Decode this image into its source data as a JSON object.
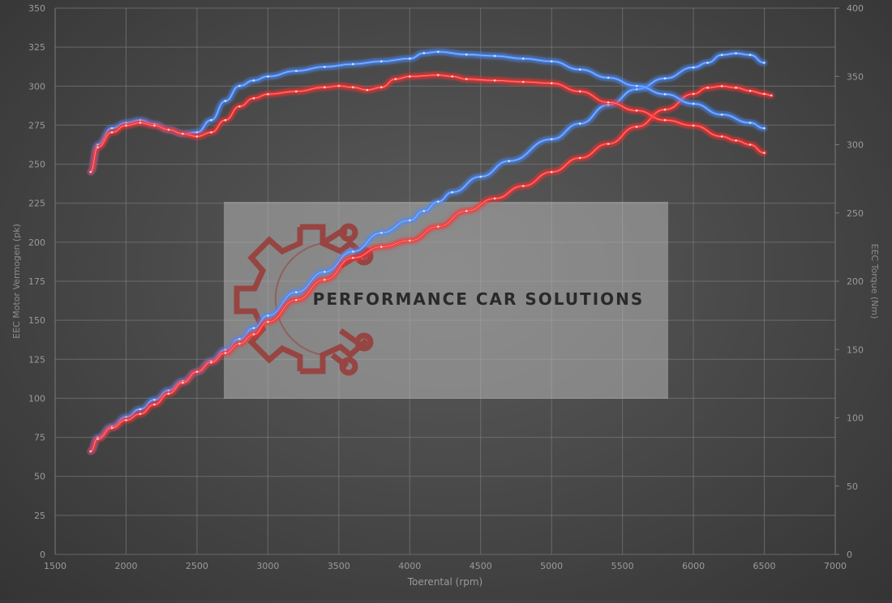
{
  "watermark": {
    "text": "PERFORMANCE CAR SOLUTIONS"
  },
  "colors": {
    "red": "#ff3030",
    "blue": "#4a8cff",
    "grid": "#7a7a7a",
    "text": "#9a9a9a"
  },
  "chart_data": {
    "type": "line",
    "title": "",
    "xlabel": "Toerental (rpm)",
    "ylabel": "EEC Motor Vermogen (pk)",
    "y2label": "EEC Torque (Nm)",
    "xlim": [
      1500,
      7000
    ],
    "ylim": [
      0,
      350
    ],
    "y2lim": [
      0,
      400
    ],
    "x_ticks": [
      "1500",
      "2000",
      "2500",
      "3000",
      "3500",
      "4000",
      "4500",
      "5000",
      "5500",
      "6000",
      "6500",
      "7000"
    ],
    "y_ticks": [
      "0",
      "25",
      "50",
      "75",
      "100",
      "125",
      "150",
      "175",
      "200",
      "225",
      "250",
      "275",
      "300",
      "325",
      "350"
    ],
    "y2_ticks": [
      "0",
      "50",
      "100",
      "150",
      "200",
      "250",
      "300",
      "350",
      "400"
    ],
    "grid": true,
    "legend": "none",
    "series": [
      {
        "axis": "left",
        "color": "#4a8cff",
        "x": [
          1750,
          1800,
          1900,
          2000,
          2100,
          2200,
          2300,
          2400,
          2500,
          2600,
          2700,
          2800,
          2900,
          3000,
          3200,
          3400,
          3600,
          3800,
          4000,
          4100,
          4200,
          4300,
          4500,
          4700,
          5000,
          5200,
          5400,
          5600,
          5800,
          6000,
          6100,
          6200,
          6300,
          6400,
          6500
        ],
        "y": [
          66,
          75,
          82,
          88,
          93,
          99,
          105,
          111,
          117,
          124,
          131,
          138,
          145,
          153,
          168,
          181,
          194,
          206,
          214,
          220,
          226,
          232,
          242,
          252,
          266,
          276,
          288,
          298,
          305,
          312,
          315,
          320,
          321,
          320,
          315
        ]
      },
      {
        "axis": "left",
        "color": "#ff3030",
        "x": [
          1750,
          1800,
          1900,
          2000,
          2100,
          2200,
          2300,
          2400,
          2500,
          2600,
          2700,
          2800,
          2900,
          3000,
          3200,
          3400,
          3600,
          3800,
          4000,
          4200,
          4400,
          4600,
          4800,
          5000,
          5200,
          5400,
          5600,
          5800,
          6000,
          6100,
          6200,
          6300,
          6400,
          6500,
          6550
        ],
        "y": [
          66,
          74,
          81,
          86,
          90,
          96,
          103,
          110,
          117,
          123,
          129,
          135,
          141,
          149,
          163,
          176,
          190,
          197,
          201,
          210,
          220,
          228,
          236,
          245,
          254,
          263,
          274,
          285,
          295,
          299,
          300,
          299,
          297,
          295,
          294
        ]
      },
      {
        "axis": "right",
        "color": "#4a8cff",
        "x": [
          1750,
          1800,
          1900,
          2000,
          2100,
          2200,
          2300,
          2400,
          2500,
          2600,
          2700,
          2800,
          2900,
          3000,
          3200,
          3400,
          3600,
          3800,
          4000,
          4100,
          4200,
          4400,
          4600,
          4800,
          5000,
          5200,
          5400,
          5600,
          5800,
          6000,
          6200,
          6400,
          6500
        ],
        "y": [
          280,
          300,
          312,
          316,
          318,
          315,
          311,
          308,
          309,
          318,
          332,
          343,
          347,
          350,
          354,
          357,
          359,
          361,
          363,
          367,
          368,
          366,
          365,
          363,
          361,
          355,
          349,
          343,
          337,
          330,
          322,
          316,
          312
        ]
      },
      {
        "axis": "right",
        "color": "#ff3030",
        "x": [
          1750,
          1800,
          1900,
          2000,
          2100,
          2200,
          2300,
          2400,
          2500,
          2600,
          2700,
          2800,
          2900,
          3000,
          3200,
          3400,
          3500,
          3600,
          3700,
          3800,
          3900,
          4000,
          4200,
          4300,
          4400,
          4600,
          4800,
          5000,
          5200,
          5400,
          5600,
          5800,
          6000,
          6200,
          6300,
          6400,
          6500
        ],
        "y": [
          280,
          298,
          309,
          314,
          316,
          314,
          311,
          308,
          306,
          309,
          318,
          328,
          334,
          337,
          339,
          342,
          343,
          342,
          340,
          342,
          348,
          350,
          351,
          350,
          348,
          347,
          346,
          345,
          339,
          331,
          325,
          318,
          314,
          306,
          303,
          300,
          294
        ]
      }
    ]
  }
}
